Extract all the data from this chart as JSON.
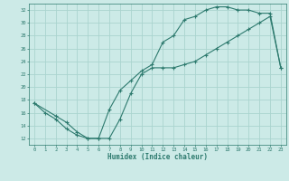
{
  "xlabel": "Humidex (Indice chaleur)",
  "xlim": [
    -0.5,
    23.5
  ],
  "ylim": [
    11,
    33
  ],
  "xticks": [
    0,
    1,
    2,
    3,
    4,
    5,
    6,
    7,
    8,
    9,
    10,
    11,
    12,
    13,
    14,
    15,
    16,
    17,
    18,
    19,
    20,
    21,
    22,
    23
  ],
  "yticks": [
    12,
    14,
    16,
    18,
    20,
    22,
    24,
    26,
    28,
    30,
    32
  ],
  "bg_color": "#cceae7",
  "line_color": "#2d7a6e",
  "grid_color": "#aad4cf",
  "line1_x": [
    0,
    1,
    2,
    3,
    4,
    5,
    6,
    7,
    8,
    9,
    10,
    11,
    12,
    13,
    14,
    15,
    16,
    17,
    18,
    19,
    20,
    21,
    22,
    23
  ],
  "line1_y": [
    17.5,
    16,
    15,
    13.5,
    12.5,
    12,
    12,
    16.5,
    19.5,
    21,
    22.5,
    23.5,
    27,
    28,
    30.5,
    31,
    32,
    32.5,
    32.5,
    32,
    32,
    31.5,
    31.5,
    23
  ],
  "line2_x": [
    0,
    2,
    3,
    4,
    5,
    6,
    7,
    8,
    9,
    10,
    11,
    12,
    13,
    14,
    15,
    16,
    17,
    18,
    19,
    20,
    21,
    22,
    23
  ],
  "line2_y": [
    17.5,
    15.5,
    14.5,
    13,
    12,
    12,
    12,
    15,
    19,
    22,
    23,
    23,
    23,
    23.5,
    24,
    25,
    26,
    27,
    28,
    29,
    30,
    31,
    23
  ]
}
